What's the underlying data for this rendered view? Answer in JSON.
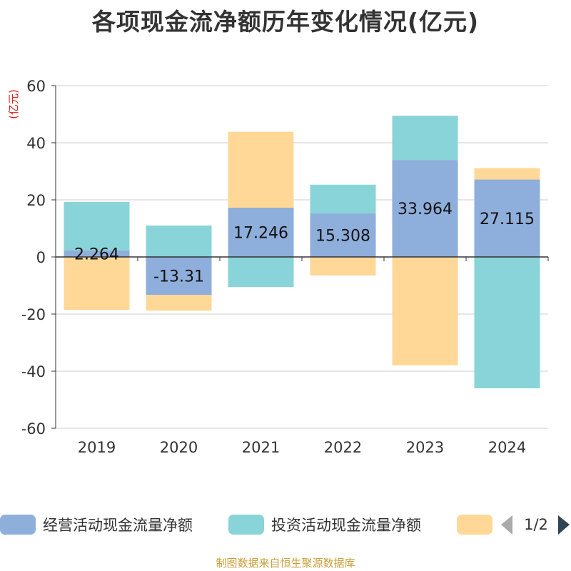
{
  "chart_data": {
    "type": "bar",
    "stacked": true,
    "title": "各项现金流净额历年变化情况(亿元)",
    "ylabel": "(亿元)",
    "ylim": [
      -60,
      60
    ],
    "yticks": [
      -60,
      -40,
      -20,
      0,
      20,
      40,
      60
    ],
    "grid": true,
    "categories": [
      "2019",
      "2020",
      "2021",
      "2022",
      "2023",
      "2024"
    ],
    "series": [
      {
        "name": "经营活动现金流量净额",
        "color": "#8eaedb",
        "values": [
          2.264,
          -13.31,
          17.246,
          15.308,
          33.964,
          27.115
        ],
        "labels": [
          "2.264",
          "-13.31",
          "17.246",
          "15.308",
          "33.964",
          "27.115"
        ]
      },
      {
        "name": "投资活动现金流量净额",
        "color": "#88d4d8",
        "values": [
          17.0,
          11.0,
          -10.5,
          10.0,
          15.5,
          -46.0
        ]
      },
      {
        "name": "",
        "color": "#ffd898",
        "values": [
          -18.5,
          -5.5,
          26.6,
          -6.5,
          -38.0,
          4.0
        ]
      }
    ],
    "legend": {
      "position": "bottom",
      "pager": "1/2"
    }
  },
  "footer": {
    "source": "制图数据来自恒生聚源数据库"
  }
}
